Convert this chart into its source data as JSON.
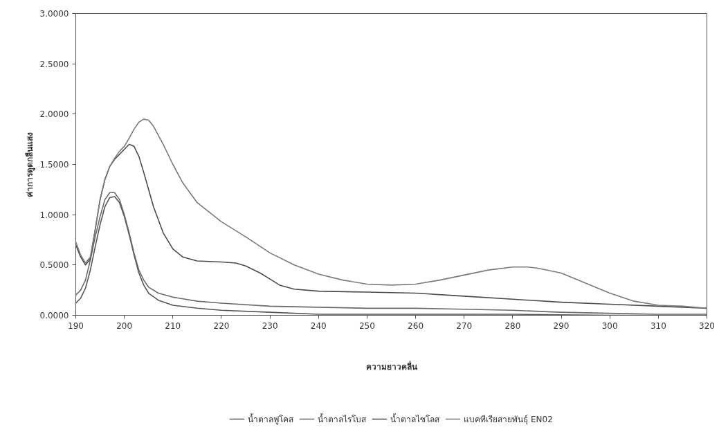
{
  "chart_data": {
    "type": "line",
    "xlabel": "ความยาวคลื่น",
    "ylabel": "ค่าการดูดกลืนแสง",
    "xlim": [
      190,
      320
    ],
    "xticks": [
      190,
      200,
      210,
      220,
      230,
      240,
      250,
      260,
      270,
      280,
      290,
      300,
      310,
      320
    ],
    "ylim": [
      0,
      3
    ],
    "yticks": [
      {
        "value": 0,
        "label": "0.0000"
      },
      {
        "value": 0.5,
        "label": "0.5000"
      },
      {
        "value": 1,
        "label": "1.0000"
      },
      {
        "value": 1.5,
        "label": "1.5000"
      },
      {
        "value": 2,
        "label": "2.0000"
      },
      {
        "value": 2.5,
        "label": "2.5000"
      },
      {
        "value": 3,
        "label": "3.0000"
      }
    ],
    "grid": false,
    "legend": "bottom",
    "marker": "none",
    "line_style": "solid",
    "series": [
      {
        "name": "น้ำตาลฟูโคส",
        "color": "#555555",
        "x": [
          190,
          191,
          192,
          193,
          194,
          195,
          196,
          197,
          198,
          199,
          200,
          201,
          202,
          203,
          204,
          205,
          207,
          210,
          215,
          220,
          230,
          240,
          250,
          260,
          280,
          300,
          320
        ],
        "values": [
          0.12,
          0.17,
          0.27,
          0.45,
          0.68,
          0.9,
          1.08,
          1.17,
          1.18,
          1.12,
          0.98,
          0.8,
          0.6,
          0.42,
          0.3,
          0.22,
          0.15,
          0.1,
          0.07,
          0.05,
          0.03,
          0.01,
          0.01,
          0.01,
          0.01,
          0.0,
          0.0
        ]
      },
      {
        "name": "น้ำตาลไรโบส",
        "color": "#6a6a6a",
        "x": [
          190,
          191,
          192,
          193,
          194,
          195,
          196,
          197,
          198,
          199,
          200,
          201,
          202,
          203,
          204,
          205,
          207,
          210,
          215,
          220,
          230,
          240,
          250,
          260,
          270,
          280,
          290,
          300,
          310,
          320
        ],
        "values": [
          0.2,
          0.25,
          0.35,
          0.55,
          0.78,
          0.98,
          1.15,
          1.22,
          1.22,
          1.15,
          1.0,
          0.82,
          0.62,
          0.45,
          0.35,
          0.28,
          0.22,
          0.18,
          0.14,
          0.12,
          0.09,
          0.08,
          0.07,
          0.07,
          0.06,
          0.05,
          0.03,
          0.02,
          0.01,
          0.01
        ]
      },
      {
        "name": "น้ำตาลไซโลส",
        "color": "#4a4a4a",
        "x": [
          190,
          191,
          192,
          193,
          194,
          195,
          196,
          197,
          198,
          199,
          200,
          201,
          202,
          203,
          204,
          205,
          206,
          208,
          210,
          212,
          215,
          220,
          223,
          225,
          228,
          230,
          232,
          235,
          240,
          250,
          260,
          270,
          280,
          290,
          300,
          310,
          320
        ],
        "values": [
          0.7,
          0.58,
          0.5,
          0.56,
          0.85,
          1.15,
          1.35,
          1.48,
          1.55,
          1.6,
          1.65,
          1.7,
          1.68,
          1.58,
          1.42,
          1.25,
          1.08,
          0.82,
          0.66,
          0.58,
          0.54,
          0.53,
          0.52,
          0.49,
          0.42,
          0.36,
          0.3,
          0.26,
          0.24,
          0.23,
          0.22,
          0.19,
          0.16,
          0.13,
          0.11,
          0.09,
          0.07
        ]
      },
      {
        "name": "แบคทีเรียสายพันธุ์ EN02",
        "color": "#7a7a7a",
        "x": [
          190,
          191,
          192,
          193,
          194,
          195,
          196,
          197,
          198,
          199,
          200,
          201,
          202,
          203,
          204,
          205,
          206,
          208,
          210,
          212,
          215,
          220,
          225,
          230,
          235,
          240,
          245,
          250,
          255,
          260,
          265,
          270,
          275,
          280,
          283,
          285,
          290,
          295,
          300,
          305,
          310,
          315,
          320
        ],
        "values": [
          0.73,
          0.6,
          0.52,
          0.58,
          0.85,
          1.15,
          1.35,
          1.48,
          1.56,
          1.63,
          1.68,
          1.76,
          1.85,
          1.92,
          1.95,
          1.94,
          1.88,
          1.7,
          1.5,
          1.32,
          1.12,
          0.93,
          0.78,
          0.62,
          0.5,
          0.41,
          0.35,
          0.31,
          0.3,
          0.31,
          0.35,
          0.4,
          0.45,
          0.48,
          0.48,
          0.47,
          0.42,
          0.32,
          0.22,
          0.14,
          0.1,
          0.09,
          0.07
        ]
      }
    ]
  }
}
